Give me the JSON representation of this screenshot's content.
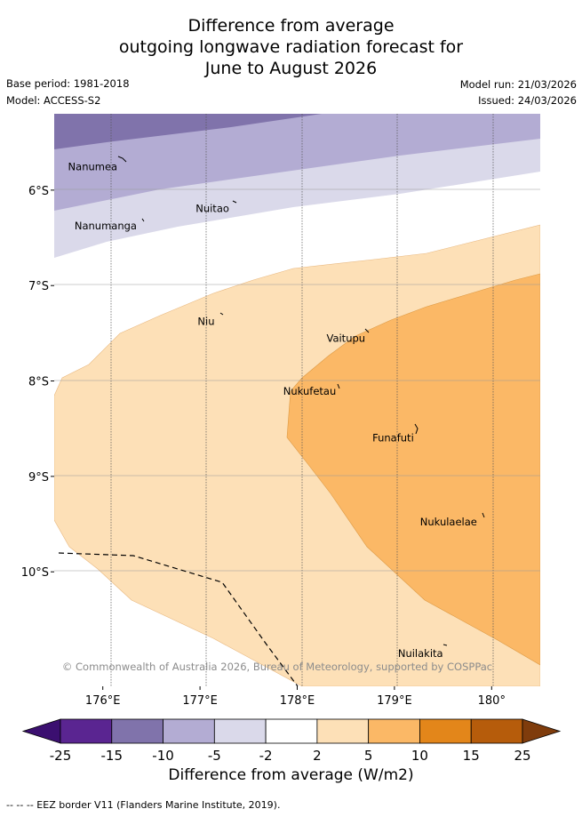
{
  "chart_data": {
    "type": "map-contour",
    "title_lines": [
      "Difference from average",
      "outgoing longwave radiation forecast for",
      "June to August 2026"
    ],
    "base_period": "Base period: 1981-2018",
    "model": "Model: ACCESS-S2",
    "model_run": "Model run: 21/03/2026",
    "issued": "Issued: 24/03/2026",
    "xlim": [
      175.5,
      180.5
    ],
    "ylim": [
      -11.2,
      -5.2
    ],
    "x_ticks": [
      {
        "value": 176,
        "label": "176°E"
      },
      {
        "value": 177,
        "label": "177°E"
      },
      {
        "value": 178,
        "label": "178°E"
      },
      {
        "value": 179,
        "label": "179°E"
      },
      {
        "value": 180,
        "label": "180°"
      }
    ],
    "y_ticks": [
      {
        "value": -6,
        "label": "6°S"
      },
      {
        "value": -7,
        "label": "7°S"
      },
      {
        "value": -8,
        "label": "8°S"
      },
      {
        "value": -9,
        "label": "9°S"
      },
      {
        "value": -10,
        "label": "10°S"
      }
    ],
    "places": [
      {
        "name": "Nanumea",
        "lon": 176.15,
        "lat": -5.68
      },
      {
        "name": "Nuitao",
        "lon": 177.3,
        "lat": -6.12
      },
      {
        "name": "Nanumanga",
        "lon": 176.35,
        "lat": -6.3
      },
      {
        "name": "Niu",
        "lon": 177.15,
        "lat": -7.3
      },
      {
        "name": "Vaitupu",
        "lon": 178.7,
        "lat": -7.48
      },
      {
        "name": "Nukufetau",
        "lon": 178.4,
        "lat": -8.03
      },
      {
        "name": "Funafuti",
        "lon": 179.2,
        "lat": -8.52
      },
      {
        "name": "Nukulaelae",
        "lon": 179.85,
        "lat": -9.4
      },
      {
        "name": "Nuilakita",
        "lon": 179.5,
        "lat": -10.78
      }
    ],
    "colorbar": {
      "ticks": [
        "-25",
        "-15",
        "-10",
        "-5",
        "-2",
        "2",
        "5",
        "10",
        "15",
        "25"
      ],
      "colors": [
        "#5a2591",
        "#8073ab",
        "#b3acd3",
        "#dad9ea",
        "#ffffff",
        "#fde0b7",
        "#fbb866",
        "#e3861a",
        "#b65c0b"
      ],
      "under_color": "#3b0f70",
      "over_color": "#7f3c0c",
      "label": "Difference from average (W/m2)"
    },
    "copyright": "© Commonwealth of Australia 2026, Bureau of Meteorology, supported by COSPPac",
    "eez_note": "-- -- -- EEZ border V11 (Flanders Marine Institute, 2019)."
  }
}
